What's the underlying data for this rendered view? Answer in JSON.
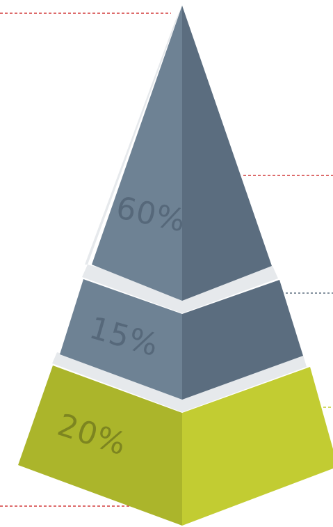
{
  "pyramid": {
    "tiers": [
      {
        "label": "60%",
        "value": 60
      },
      {
        "label": "15%",
        "value": 15
      },
      {
        "label": "20%",
        "value": 20
      }
    ]
  },
  "colors": {
    "tier_top_left": "#6e8294",
    "tier_top_right": "#5b6d7f",
    "tier_bottom_left": "#abb52b",
    "tier_bottom_right": "#c2cc32",
    "gap": "#e6e9ec",
    "label_slate": "#56687a",
    "label_olive": "#7d8520",
    "leader_red": "#d23a3a",
    "leader_slate": "#5b6d7f",
    "leader_olive": "#c2cc32"
  }
}
